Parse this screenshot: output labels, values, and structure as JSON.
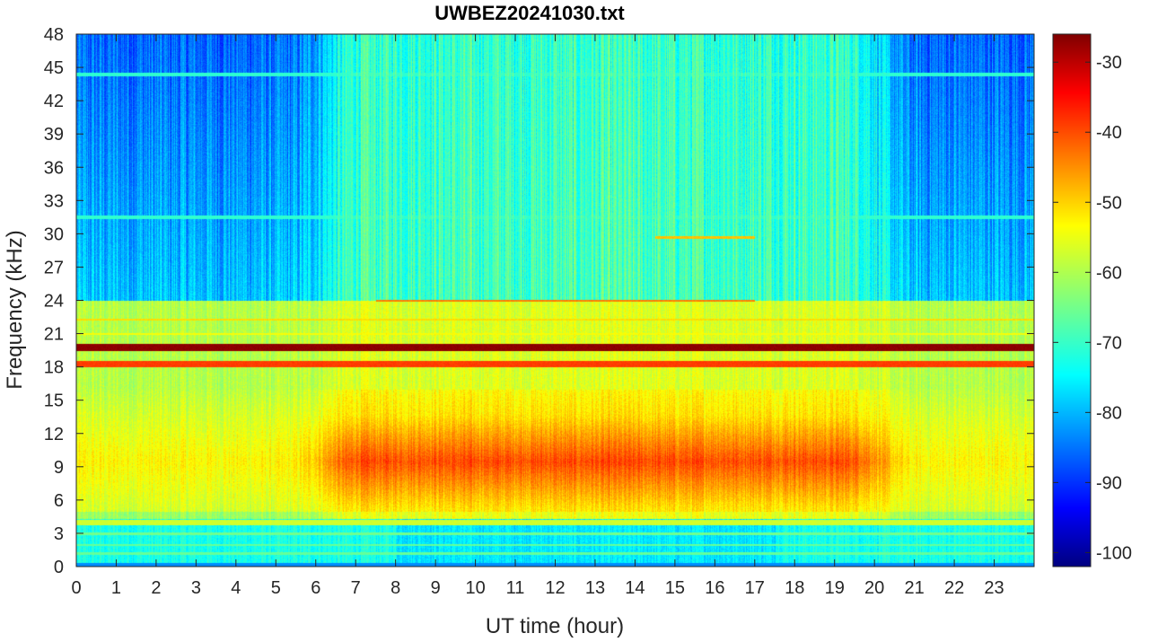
{
  "chart_data": {
    "type": "heatmap",
    "title": "UWBEZ20241030.txt",
    "xlabel": "UT time (hour)",
    "ylabel": "Frequency (kHz)",
    "xlim": [
      0,
      24
    ],
    "ylim": [
      0,
      48
    ],
    "x_ticks": [
      "0",
      "1",
      "2",
      "3",
      "4",
      "5",
      "6",
      "7",
      "8",
      "9",
      "10",
      "11",
      "12",
      "13",
      "14",
      "15",
      "16",
      "17",
      "18",
      "19",
      "20",
      "21",
      "22",
      "23"
    ],
    "y_ticks": [
      "0",
      "3",
      "6",
      "9",
      "12",
      "15",
      "18",
      "21",
      "24",
      "27",
      "30",
      "33",
      "36",
      "39",
      "42",
      "45",
      "48"
    ],
    "colorbar": {
      "colormap": "jet",
      "range": [
        -102,
        -26
      ],
      "ticks": [
        "-30",
        "-40",
        "-50",
        "-60",
        "-70",
        "-80",
        "-90",
        "-100"
      ]
    },
    "grid": false,
    "features": {
      "strong_transmitter_lines_khz": [
        19.8,
        18.3
      ],
      "daytime_enhancement_hours": [
        6,
        20.5
      ],
      "daytime_enhancement_band_khz": [
        5,
        15
      ],
      "daytime_level_db": -47,
      "night_high_freq_level_db": -85
    }
  }
}
